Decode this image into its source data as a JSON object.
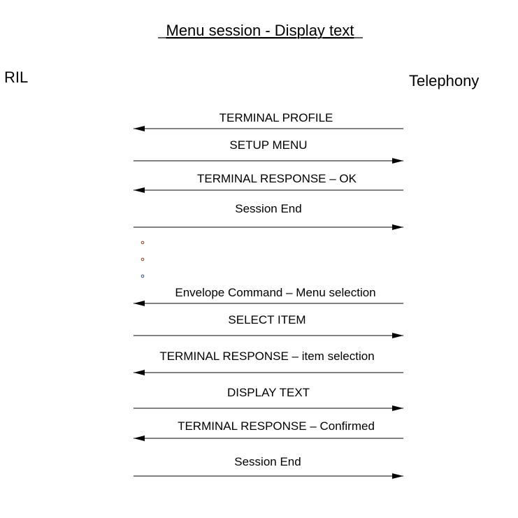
{
  "title": "Menu session - Display text",
  "left_entity": "RIL",
  "right_entity": "Telephony",
  "messages": [
    {
      "label": "TERMINAL PROFILE",
      "direction": "left"
    },
    {
      "label": "SETUP MENU",
      "direction": "right"
    },
    {
      "label": "TERMINAL RESPONSE – OK",
      "direction": "left"
    },
    {
      "label": "Session End",
      "direction": "right"
    },
    {
      "label": "Envelope Command – Menu selection",
      "direction": "left"
    },
    {
      "label": "SELECT ITEM",
      "direction": "right"
    },
    {
      "label": "TERMINAL RESPONSE – item selection",
      "direction": "left"
    },
    {
      "label": "DISPLAY TEXT",
      "direction": "right"
    },
    {
      "label": "TERMINAL RESPONSE – Confirmed",
      "direction": "left"
    },
    {
      "label": "Session End",
      "direction": "right"
    }
  ],
  "ellipsis_dots": 3
}
